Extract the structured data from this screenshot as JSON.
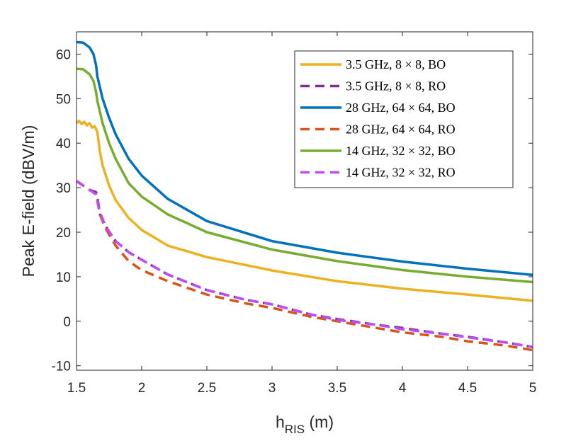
{
  "chart_data": {
    "type": "line",
    "xlabel_main": "h",
    "xlabel_sub": "RIS",
    "xlabel_unit": " (m)",
    "ylabel": "Peak E-field (dBV/m)",
    "xlim": [
      1.5,
      5
    ],
    "ylim": [
      -11,
      65
    ],
    "xticks": [
      1.5,
      2,
      2.5,
      3,
      3.5,
      4,
      4.5,
      5
    ],
    "xtick_labels": [
      "1.5",
      "2",
      "2.5",
      "3",
      "3.5",
      "4",
      "4.5",
      "5"
    ],
    "yticks": [
      -10,
      0,
      10,
      20,
      30,
      40,
      50,
      60
    ],
    "ytick_labels": [
      "-10",
      "0",
      "10",
      "20",
      "30",
      "40",
      "50",
      "60"
    ],
    "legend_position": "top-right",
    "grid": false,
    "series": [
      {
        "name": "3.5 GHz, 8 × 8, BO",
        "color": "#EDB120",
        "dash": "solid",
        "x": [
          1.5,
          1.52,
          1.54,
          1.56,
          1.58,
          1.6,
          1.62,
          1.64,
          1.66,
          1.68,
          1.7,
          1.75,
          1.8,
          1.9,
          2.0,
          2.2,
          2.5,
          3.0,
          3.5,
          4.0,
          4.5,
          5.0
        ],
        "y": [
          44.5,
          45.0,
          44.3,
          44.8,
          44.0,
          44.5,
          43.5,
          43.8,
          42.5,
          38.0,
          35.0,
          30.5,
          27.2,
          23.2,
          20.5,
          17.0,
          14.4,
          11.4,
          9.0,
          7.3,
          6.0,
          4.6
        ]
      },
      {
        "name": "3.5 GHz, 8 × 8, RO",
        "color": "#7E2F8E",
        "dash": "dashed",
        "x": [
          1.5,
          1.55,
          1.6,
          1.65,
          1.66,
          1.68,
          1.72,
          1.8,
          1.9,
          2.0,
          2.2,
          2.5,
          2.8,
          3.0,
          3.3,
          3.5,
          3.8,
          4.0,
          4.3,
          4.5,
          4.8,
          5.0
        ],
        "y": [
          31.5,
          30.5,
          29.5,
          29.0,
          28.0,
          24.0,
          21.5,
          18.0,
          15.5,
          13.8,
          10.5,
          7.0,
          4.8,
          3.8,
          1.5,
          0.5,
          -0.8,
          -1.5,
          -2.8,
          -3.5,
          -4.8,
          -5.8
        ]
      },
      {
        "name": "28 GHz, 64 × 64, BO",
        "color": "#0072BD",
        "dash": "solid",
        "x": [
          1.5,
          1.55,
          1.6,
          1.63,
          1.65,
          1.66,
          1.68,
          1.7,
          1.75,
          1.8,
          1.9,
          2.0,
          2.2,
          2.5,
          3.0,
          3.5,
          4.0,
          4.5,
          5.0
        ],
        "y": [
          62.7,
          62.6,
          61.5,
          60.0,
          57.5,
          55.0,
          52.5,
          50.0,
          45.7,
          42.0,
          36.5,
          32.7,
          27.5,
          22.5,
          18.0,
          15.4,
          13.4,
          11.8,
          10.4
        ]
      },
      {
        "name": "28 GHz, 64 × 64, RO",
        "color": "#D95319",
        "dash": "dashed",
        "x": [
          1.5,
          1.55,
          1.6,
          1.65,
          1.68,
          1.72,
          1.8,
          1.9,
          2.0,
          2.2,
          2.5,
          2.8,
          3.0,
          3.3,
          3.5,
          3.8,
          4.0,
          4.3,
          4.5,
          4.8,
          5.0
        ],
        "y": [
          31.5,
          30.5,
          29.5,
          28.5,
          24.0,
          21.0,
          17.0,
          13.5,
          11.5,
          9.0,
          6.0,
          4.0,
          3.0,
          1.0,
          0.0,
          -1.5,
          -2.5,
          -3.5,
          -4.5,
          -5.5,
          -6.5
        ]
      },
      {
        "name": "14 GHz, 32 × 32, BO",
        "color": "#77AC30",
        "dash": "solid",
        "x": [
          1.5,
          1.55,
          1.6,
          1.63,
          1.65,
          1.66,
          1.68,
          1.7,
          1.75,
          1.8,
          1.9,
          2.0,
          2.2,
          2.5,
          3.0,
          3.5,
          4.0,
          4.5,
          5.0
        ],
        "y": [
          56.7,
          56.6,
          55.5,
          54.0,
          51.5,
          49.5,
          47.0,
          44.5,
          40.0,
          36.5,
          31.0,
          28.0,
          24.0,
          20.0,
          16.1,
          13.5,
          11.5,
          10.0,
          8.8
        ]
      },
      {
        "name": "14 GHz, 32 × 32, RO",
        "color": "#BE4CFF",
        "dash": "dashed",
        "x": [
          1.5,
          1.55,
          1.6,
          1.65,
          1.68,
          1.72,
          1.8,
          1.9,
          2.0,
          2.2,
          2.5,
          2.8,
          3.0,
          3.3,
          3.5,
          3.8,
          4.0,
          4.3,
          4.5,
          4.8,
          5.0
        ],
        "y": [
          31.5,
          30.5,
          29.5,
          28.5,
          24.5,
          21.5,
          18.0,
          15.5,
          13.8,
          10.5,
          7.0,
          4.8,
          3.8,
          1.5,
          0.3,
          -0.8,
          -1.8,
          -2.8,
          -3.6,
          -4.8,
          -5.8
        ]
      }
    ]
  }
}
